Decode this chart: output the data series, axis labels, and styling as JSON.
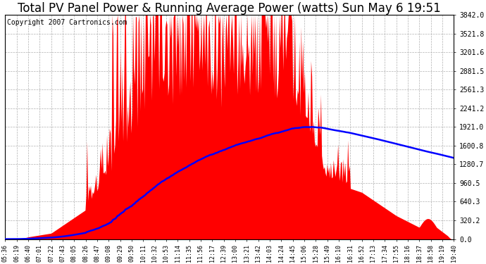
{
  "title": "Total PV Panel Power & Running Average Power (watts) Sun May 6 19:51",
  "copyright": "Copyright 2007 Cartronics.com",
  "yticks": [
    0.0,
    320.2,
    640.3,
    960.5,
    1280.7,
    1600.8,
    1921.0,
    2241.2,
    2561.3,
    2881.5,
    3201.6,
    3521.8,
    3842.0
  ],
  "ymax": 3842.0,
  "ymin": 0.0,
  "xtick_labels": [
    "05:36",
    "06:19",
    "06:40",
    "07:01",
    "07:22",
    "07:43",
    "08:05",
    "08:26",
    "08:47",
    "09:08",
    "09:29",
    "09:50",
    "10:11",
    "10:32",
    "10:53",
    "11:14",
    "11:35",
    "11:56",
    "12:17",
    "12:39",
    "13:00",
    "13:21",
    "13:42",
    "14:03",
    "14:24",
    "14:45",
    "15:06",
    "15:28",
    "15:49",
    "16:10",
    "16:31",
    "16:52",
    "17:13",
    "17:34",
    "17:55",
    "18:16",
    "18:37",
    "18:58",
    "19:19",
    "19:40"
  ],
  "background_color": "#ffffff",
  "plot_bg_color": "#ffffff",
  "grid_color": "#b0b0b0",
  "bar_color": "#ff0000",
  "line_color": "#0000ff",
  "title_fontsize": 12,
  "copyright_fontsize": 7
}
